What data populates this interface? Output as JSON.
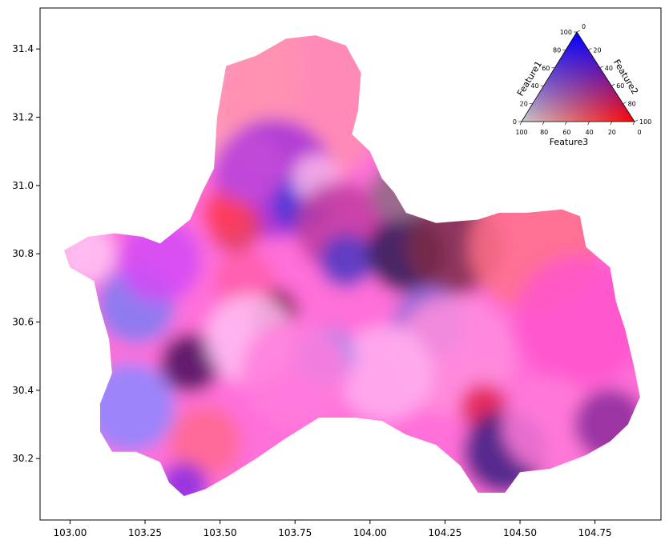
{
  "chart_data": {
    "type": "heatmap",
    "title": "",
    "xlabel": "",
    "ylabel": "",
    "xlim": [
      102.9,
      104.97
    ],
    "ylim": [
      30.02,
      31.52
    ],
    "x_ticks": [
      "103.00",
      "103.25",
      "103.50",
      "103.75",
      "104.00",
      "104.25",
      "104.50",
      "104.75"
    ],
    "x_tick_values": [
      103.0,
      103.25,
      103.5,
      103.75,
      104.0,
      104.25,
      104.5,
      104.75
    ],
    "y_ticks": [
      "30.2",
      "30.4",
      "30.6",
      "30.8",
      "31.0",
      "31.2",
      "31.4"
    ],
    "y_tick_values": [
      30.2,
      30.4,
      30.6,
      30.8,
      31.0,
      31.2,
      31.4
    ],
    "grid": false,
    "region_outline": [
      [
        103.52,
        31.35
      ],
      [
        103.62,
        31.38
      ],
      [
        103.72,
        31.43
      ],
      [
        103.82,
        31.44
      ],
      [
        103.92,
        31.41
      ],
      [
        103.97,
        31.33
      ],
      [
        103.96,
        31.22
      ],
      [
        103.94,
        31.15
      ],
      [
        104.0,
        31.1
      ],
      [
        104.04,
        31.02
      ],
      [
        104.08,
        30.98
      ],
      [
        104.12,
        30.92
      ],
      [
        104.22,
        30.89
      ],
      [
        104.36,
        30.9
      ],
      [
        104.43,
        30.92
      ],
      [
        104.52,
        30.92
      ],
      [
        104.64,
        30.93
      ],
      [
        104.7,
        30.91
      ],
      [
        104.72,
        30.82
      ],
      [
        104.8,
        30.76
      ],
      [
        104.82,
        30.66
      ],
      [
        104.85,
        30.58
      ],
      [
        104.88,
        30.47
      ],
      [
        104.9,
        30.38
      ],
      [
        104.86,
        30.3
      ],
      [
        104.8,
        30.25
      ],
      [
        104.72,
        30.21
      ],
      [
        104.6,
        30.17
      ],
      [
        104.5,
        30.16
      ],
      [
        104.45,
        30.1
      ],
      [
        104.36,
        30.1
      ],
      [
        104.3,
        30.18
      ],
      [
        104.22,
        30.24
      ],
      [
        104.12,
        30.27
      ],
      [
        104.04,
        30.31
      ],
      [
        103.95,
        30.32
      ],
      [
        103.83,
        30.32
      ],
      [
        103.72,
        30.26
      ],
      [
        103.62,
        30.2
      ],
      [
        103.53,
        30.15
      ],
      [
        103.45,
        30.11
      ],
      [
        103.38,
        30.09
      ],
      [
        103.33,
        30.13
      ],
      [
        103.3,
        30.19
      ],
      [
        103.22,
        30.22
      ],
      [
        103.14,
        30.22
      ],
      [
        103.1,
        30.28
      ],
      [
        103.1,
        30.36
      ],
      [
        103.14,
        30.45
      ],
      [
        103.13,
        30.55
      ],
      [
        103.1,
        30.64
      ],
      [
        103.08,
        30.72
      ],
      [
        103.0,
        30.76
      ],
      [
        102.98,
        30.81
      ],
      [
        103.06,
        30.85
      ],
      [
        103.15,
        30.86
      ],
      [
        103.24,
        30.85
      ],
      [
        103.3,
        30.83
      ],
      [
        103.4,
        30.9
      ],
      [
        103.44,
        30.98
      ],
      [
        103.48,
        31.05
      ],
      [
        103.49,
        31.2
      ],
      [
        103.52,
        31.35
      ]
    ],
    "color_patches": [
      {
        "x": 103.45,
        "y": 31.35,
        "r": 0.32,
        "color": "#ff9fb6"
      },
      {
        "x": 103.78,
        "y": 31.25,
        "r": 0.28,
        "color": "#ff8fb0"
      },
      {
        "x": 103.68,
        "y": 31.02,
        "r": 0.2,
        "color": "#a62fd9"
      },
      {
        "x": 103.77,
        "y": 30.95,
        "r": 0.1,
        "color": "#3f37d6"
      },
      {
        "x": 103.82,
        "y": 31.02,
        "r": 0.08,
        "color": "#ffb8ea"
      },
      {
        "x": 103.55,
        "y": 30.88,
        "r": 0.09,
        "color": "#e23d5e"
      },
      {
        "x": 103.9,
        "y": 30.88,
        "r": 0.15,
        "color": "#c23ba0"
      },
      {
        "x": 103.92,
        "y": 30.78,
        "r": 0.09,
        "color": "#4d3bc6"
      },
      {
        "x": 104.12,
        "y": 30.8,
        "r": 0.13,
        "color": "#2a1a52"
      },
      {
        "x": 104.1,
        "y": 30.98,
        "r": 0.1,
        "color": "#8a6a80"
      },
      {
        "x": 104.28,
        "y": 30.82,
        "r": 0.16,
        "color": "#7a2a48"
      },
      {
        "x": 104.55,
        "y": 30.82,
        "r": 0.22,
        "color": "#ff7088"
      },
      {
        "x": 104.7,
        "y": 30.6,
        "r": 0.22,
        "color": "#ff55cc"
      },
      {
        "x": 104.2,
        "y": 30.6,
        "r": 0.12,
        "color": "#8d6bd8"
      },
      {
        "x": 104.28,
        "y": 30.5,
        "r": 0.2,
        "color": "#ff8edc"
      },
      {
        "x": 104.05,
        "y": 30.45,
        "r": 0.16,
        "color": "#ffb0f0"
      },
      {
        "x": 104.38,
        "y": 30.35,
        "r": 0.08,
        "color": "#e0204f"
      },
      {
        "x": 104.45,
        "y": 30.22,
        "r": 0.14,
        "color": "#3a2080"
      },
      {
        "x": 104.6,
        "y": 30.3,
        "r": 0.16,
        "color": "#ff7ad8"
      },
      {
        "x": 104.8,
        "y": 30.3,
        "r": 0.12,
        "color": "#8a2a9a"
      },
      {
        "x": 103.68,
        "y": 30.63,
        "r": 0.08,
        "color": "#7a1440"
      },
      {
        "x": 103.58,
        "y": 30.72,
        "r": 0.1,
        "color": "#ff5fa8"
      },
      {
        "x": 103.4,
        "y": 30.48,
        "r": 0.1,
        "color": "#4a0f5a"
      },
      {
        "x": 103.22,
        "y": 30.65,
        "r": 0.13,
        "color": "#7d7df2"
      },
      {
        "x": 103.2,
        "y": 30.35,
        "r": 0.15,
        "color": "#8b88ff"
      },
      {
        "x": 103.05,
        "y": 30.8,
        "r": 0.1,
        "color": "#ffc8f4"
      },
      {
        "x": 103.3,
        "y": 30.78,
        "r": 0.14,
        "color": "#d34af6"
      },
      {
        "x": 103.45,
        "y": 30.25,
        "r": 0.12,
        "color": "#ff6a8e"
      },
      {
        "x": 103.38,
        "y": 30.12,
        "r": 0.08,
        "color": "#8a2ae0"
      },
      {
        "x": 103.6,
        "y": 30.55,
        "r": 0.15,
        "color": "#ffc0f2"
      },
      {
        "x": 103.85,
        "y": 30.5,
        "r": 0.1,
        "color": "#8f8cf0"
      },
      {
        "x": 103.75,
        "y": 30.45,
        "r": 0.18,
        "color": "#ff7ddc"
      },
      {
        "x": 103.52,
        "y": 30.92,
        "r": 0.08,
        "color": "#ff3d5a"
      },
      {
        "x": 103.6,
        "y": 31.05,
        "r": 0.12,
        "color": "#c24ad8"
      }
    ],
    "ternary_legend": {
      "labels": [
        "Feature1",
        "Feature2",
        "Feature3"
      ],
      "tick_labels": [
        "0",
        "20",
        "40",
        "60",
        "80",
        "100"
      ],
      "corner_colors": {
        "top": "#0000ff",
        "right": "#ff0000",
        "left": "#c8c8c8"
      }
    }
  }
}
